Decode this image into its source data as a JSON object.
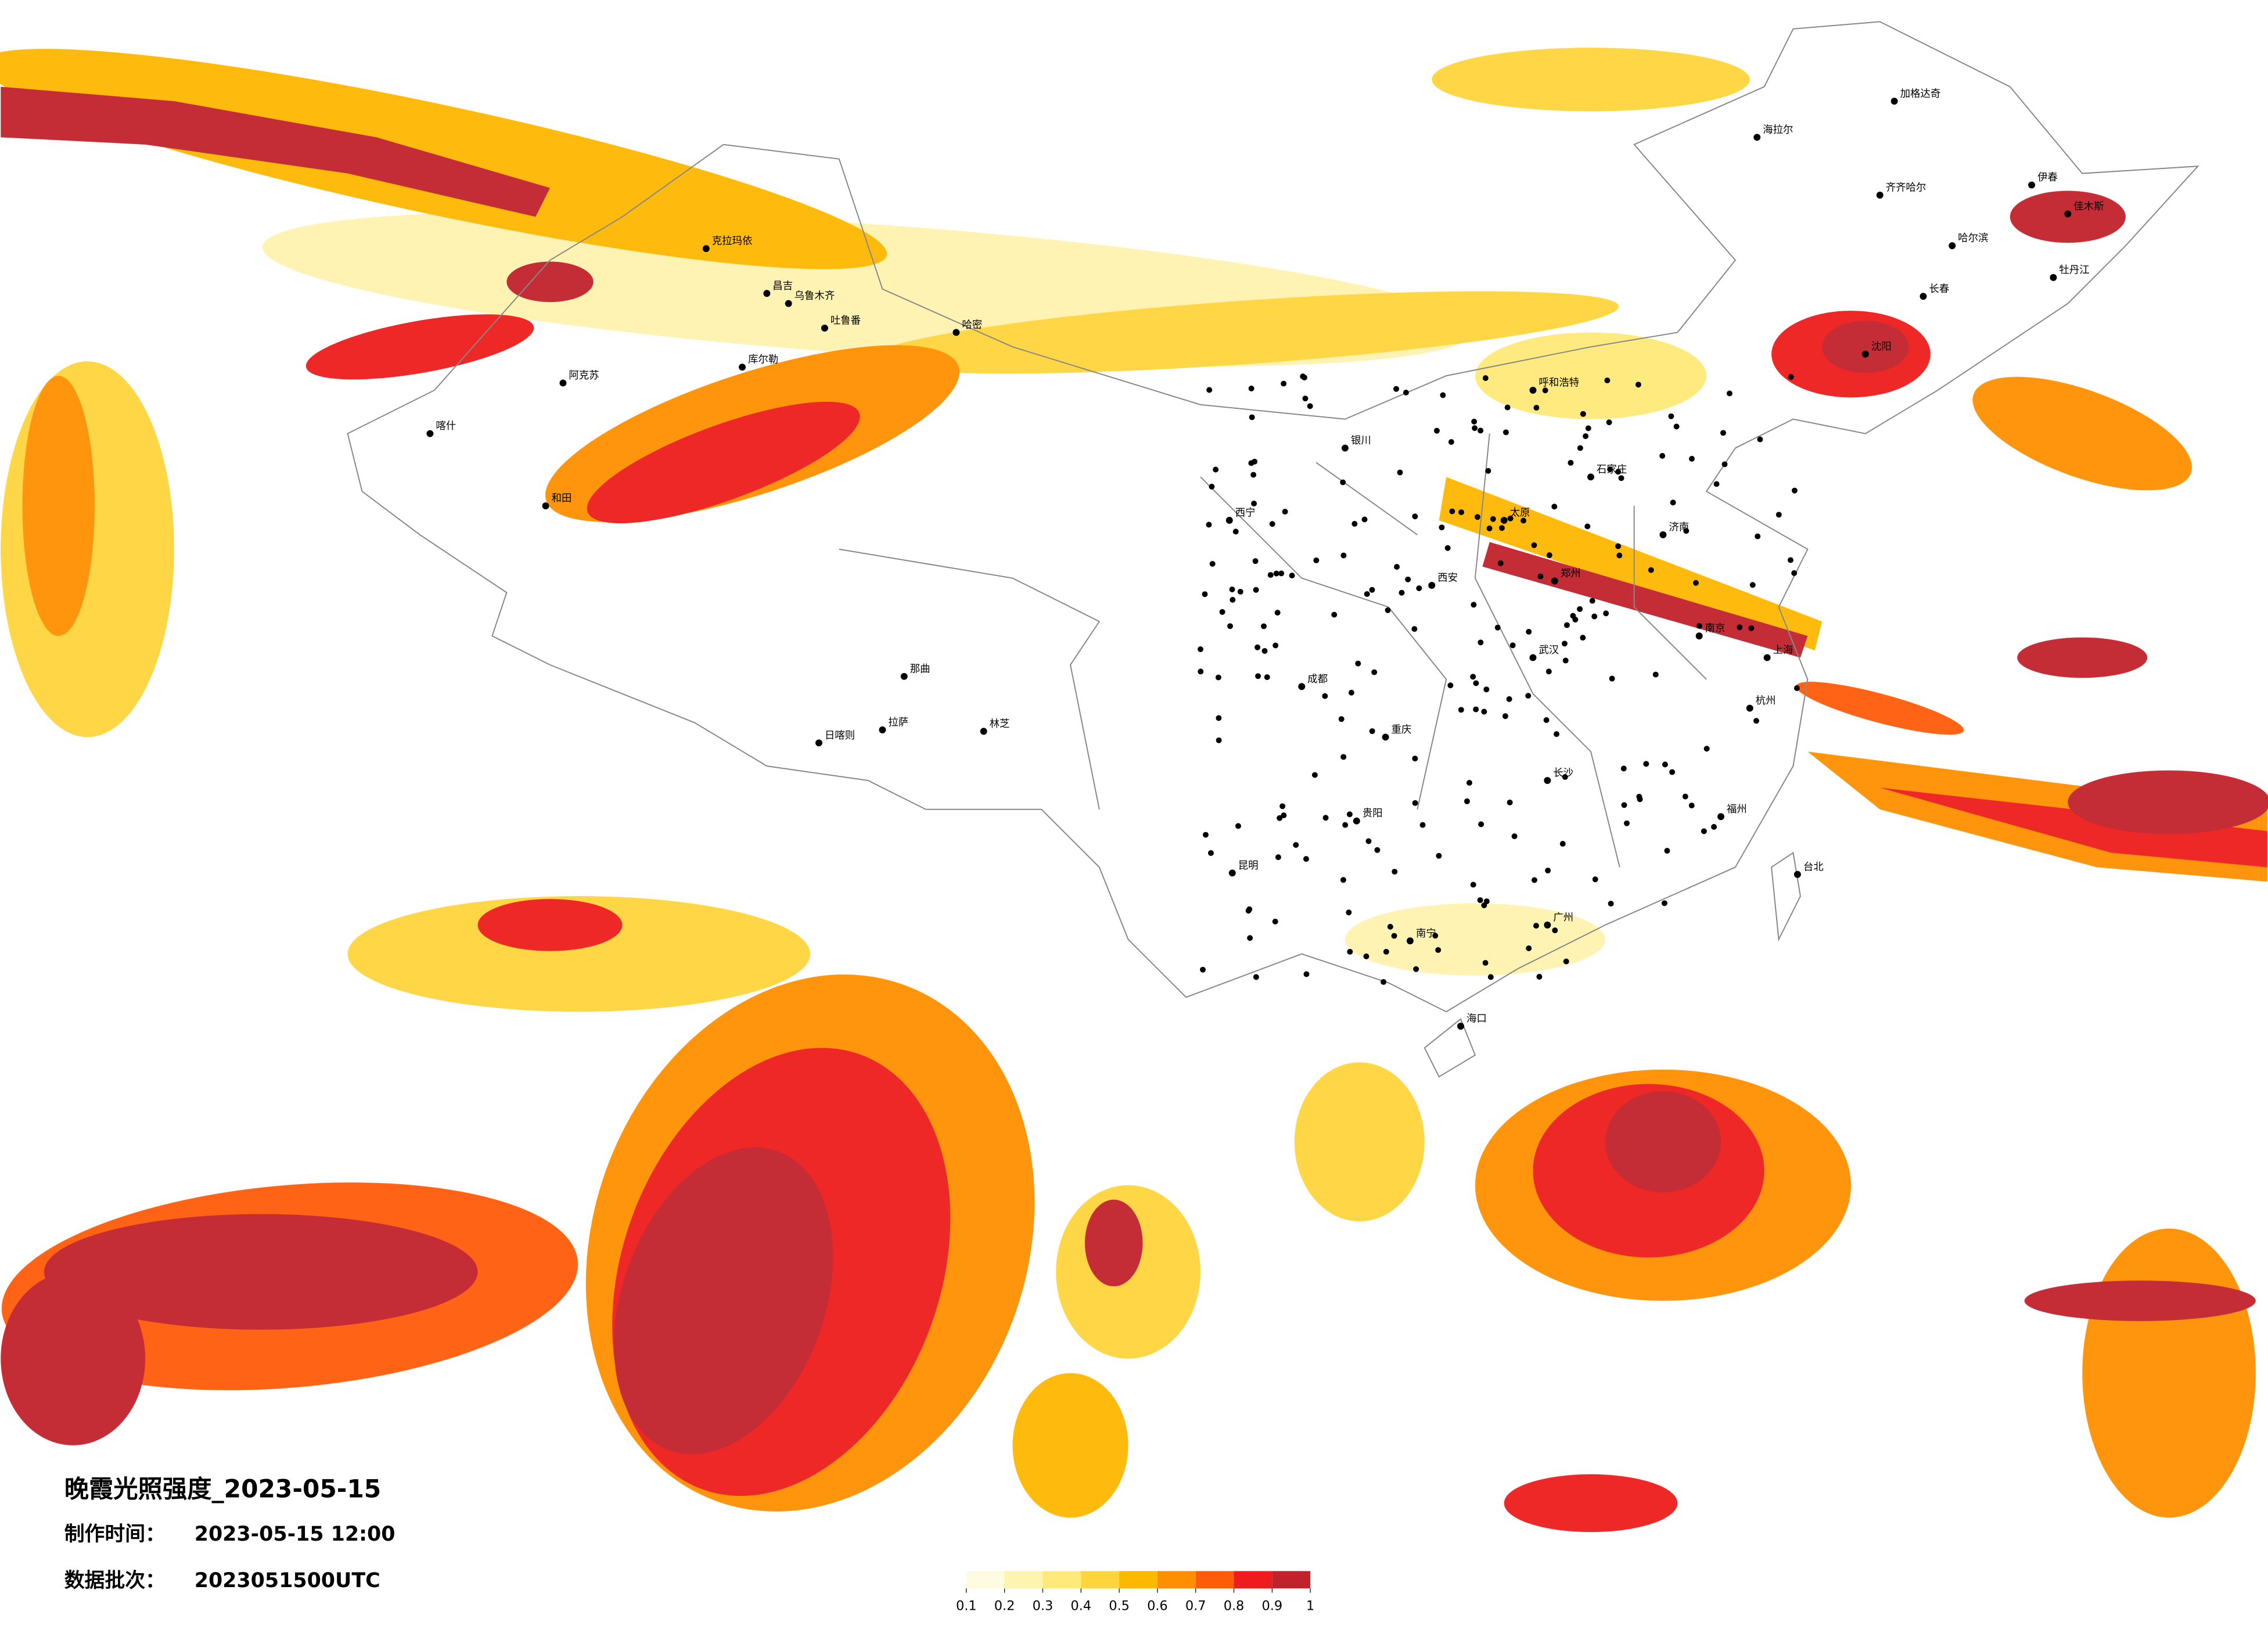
{
  "map": {
    "title": "晚霞光照强度_2023-05-15",
    "production_time": {
      "label": "制作时间：",
      "value": "2023-05-15 12:00"
    },
    "data_batch": {
      "label": "数据批次：",
      "value": "2023051500UTC"
    },
    "colorbar": {
      "colors": [
        "#fffbe0",
        "#fff3b0",
        "#ffe97a",
        "#ffd43c",
        "#ffb800",
        "#ff8f00",
        "#ff5c0a",
        "#ee1c1c",
        "#c1222c"
      ],
      "ticks": [
        0.1,
        0.2,
        0.3,
        0.4,
        0.5,
        0.6,
        0.7,
        0.8,
        0.9,
        1
      ]
    },
    "cities": [
      "克拉玛依",
      "昌吉",
      "乌鲁木齐",
      "吐鲁番",
      "哈密",
      "库尔勒",
      "阿克苏",
      "和田",
      "喀什",
      "拉萨",
      "日喀则",
      "林芝",
      "那曲",
      "西宁",
      "呼和浩特",
      "成都",
      "重庆",
      "昆明",
      "贵阳",
      "南宁",
      "广州",
      "武汉",
      "长沙",
      "郑州",
      "西安",
      "济南",
      "石家庄",
      "上海",
      "南京",
      "杭州",
      "福州",
      "台北",
      "海口",
      "哈尔滨",
      "长春",
      "沈阳",
      "齐齐哈尔",
      "加格达奇",
      "海拉尔",
      "伊春",
      "佳木斯",
      "牡丹江",
      "银川",
      "太原"
    ]
  }
}
